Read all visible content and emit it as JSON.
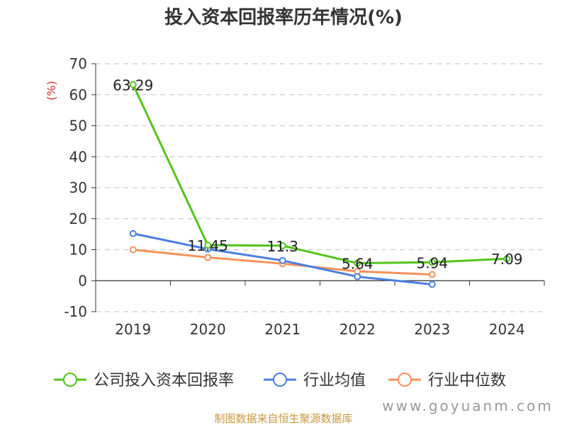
{
  "chart_data": {
    "type": "line",
    "title": "投入资本回报率历年情况(%)",
    "ylabel": "(%)",
    "categories": [
      "2019",
      "2020",
      "2021",
      "2022",
      "2023",
      "2024"
    ],
    "ylim": [
      -10,
      70
    ],
    "yticks": [
      -10,
      0,
      10,
      20,
      30,
      40,
      50,
      60,
      70
    ],
    "grid": true,
    "legend_position": "bottom",
    "series": [
      {
        "name": "公司投入资本回报率",
        "color": "#52c41a",
        "values": [
          63.29,
          11.45,
          11.3,
          5.64,
          5.94,
          7.09
        ],
        "data_labels": [
          "63.29",
          "11.45",
          "11.3",
          "5.64",
          "5.94",
          "7.09"
        ]
      },
      {
        "name": "行业均值",
        "color": "#4a7fe0",
        "values": [
          15.2,
          10.2,
          6.5,
          1.3,
          -1.2,
          null
        ]
      },
      {
        "name": "行业中位数",
        "color": "#f5915a",
        "values": [
          10.0,
          7.5,
          5.5,
          3.0,
          2.0,
          null
        ]
      }
    ]
  },
  "footer": {
    "source": "制图数据来自恒生聚源数据库",
    "watermark": "www.goyuanm.com"
  }
}
